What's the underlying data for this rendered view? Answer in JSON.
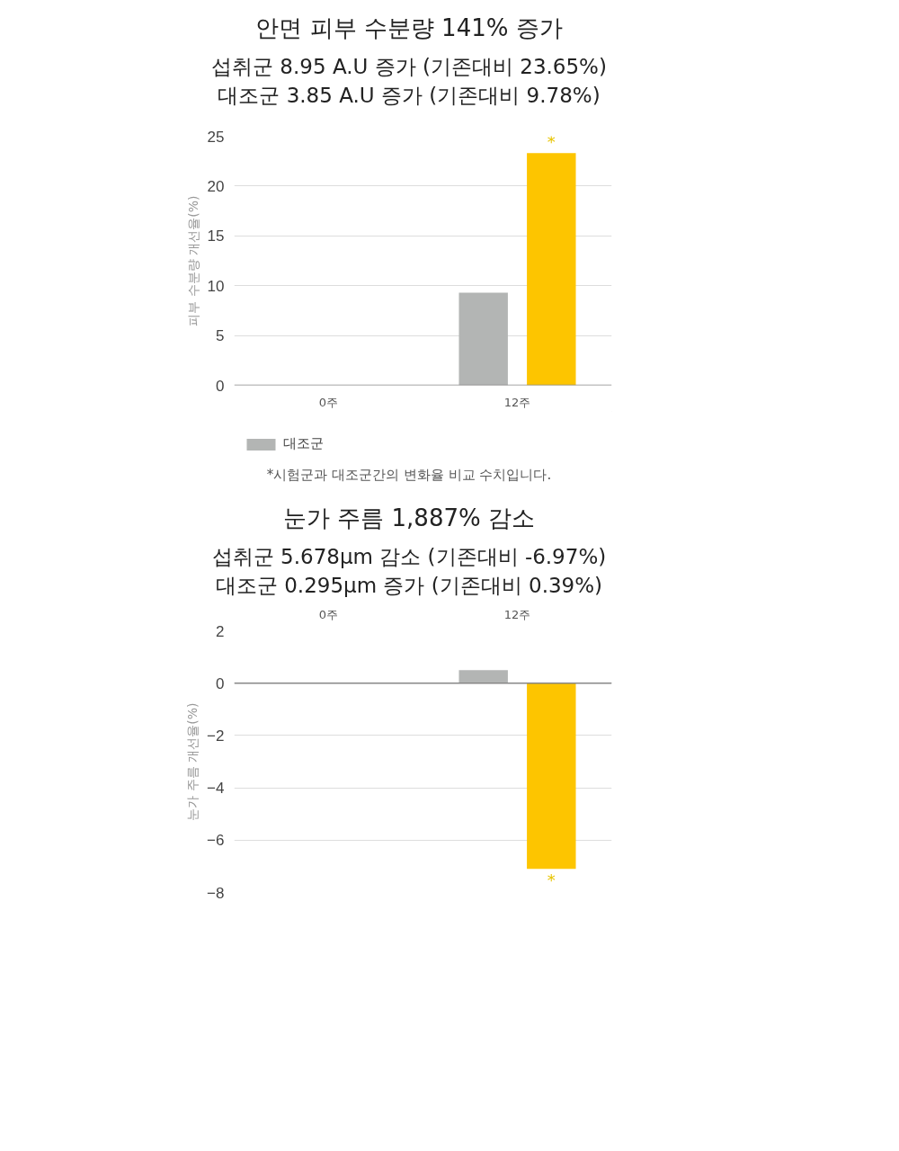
{
  "chart_data": [
    {
      "type": "bar",
      "title": "안면 피부 수분량 141% 증가",
      "subtitle": "섭취군 8.95 A.U 증가 (기존대비 23.65%)\n대조군 3.85 A.U 증가 (기존대비 9.78%)",
      "ylabel": "피부 수분량 개선율(%)",
      "categories": [
        "0주",
        "12주"
      ],
      "series": [
        {
          "name": "대조군",
          "color": "#b3b5b4",
          "values": [
            0,
            9.3
          ]
        },
        {
          "color": "#fdc500",
          "values": [
            0,
            23.3
          ]
        }
      ],
      "ylim": [
        0,
        25
      ],
      "yticks": [
        0,
        5,
        10,
        15,
        20,
        25
      ],
      "grid": "y",
      "legend": "bottom left",
      "annotations": [
        "*",
        "*시험군과 대조군간의 변화율 비교 수치입니다."
      ]
    },
    {
      "type": "bar",
      "title": "눈가 주름 1,887% 감소",
      "subtitle": "섭취군 5.678μm 감소 (기존대비 -6.97%)\n대조군 0.295μm 증가 (기존대비 0.39%)",
      "ylabel": "눈가 주름 개선율(%)",
      "categories": [
        "0주",
        "12주"
      ],
      "series": [
        {
          "color": "#b3b5b4",
          "values": [
            0,
            0.5
          ]
        },
        {
          "color": "#fdc500",
          "values": [
            0,
            -7.1
          ]
        }
      ],
      "ylim": [
        -8,
        2
      ],
      "yticks": [
        -8,
        -6,
        -4,
        -2,
        0,
        2
      ],
      "grid": "y",
      "annotations": [
        "*"
      ]
    }
  ]
}
